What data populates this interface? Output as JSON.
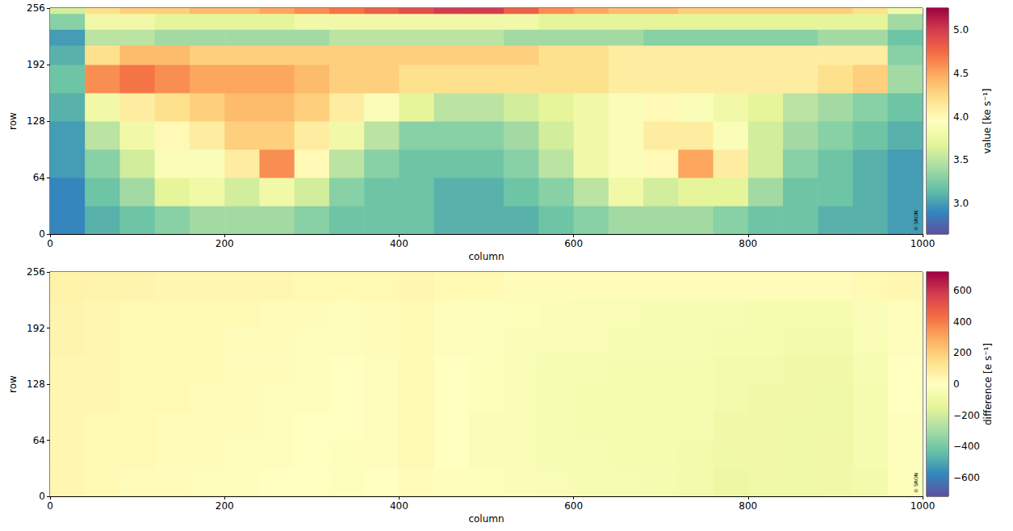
{
  "chart_data": [
    {
      "type": "heatmap",
      "x_label": "column",
      "y_label": "row",
      "xlim": [
        0,
        1000
      ],
      "xticks": [
        0,
        200,
        400,
        600,
        800,
        1000
      ],
      "ylim": [
        0,
        256
      ],
      "yticks": [
        0,
        64,
        128,
        192,
        256
      ],
      "x_edges": [
        0,
        40,
        80,
        120,
        160,
        200,
        240,
        280,
        320,
        360,
        400,
        440,
        480,
        520,
        560,
        600,
        640,
        680,
        720,
        760,
        800,
        840,
        880,
        920,
        960,
        1000
      ],
      "y_edges": [
        0,
        32,
        64,
        96,
        128,
        160,
        192,
        214,
        232,
        250,
        256
      ],
      "cells": [
        [
          2.9,
          3.1,
          3.2,
          3.3,
          3.4,
          3.4,
          3.4,
          3.3,
          3.2,
          3.2,
          3.2,
          3.1,
          3.1,
          3.1,
          3.2,
          3.3,
          3.4,
          3.4,
          3.4,
          3.3,
          3.2,
          3.2,
          3.1,
          3.1,
          3.0
        ],
        [
          2.9,
          3.2,
          3.4,
          3.7,
          3.8,
          3.6,
          3.8,
          3.6,
          3.3,
          3.2,
          3.2,
          3.1,
          3.1,
          3.2,
          3.3,
          3.5,
          3.8,
          3.6,
          3.7,
          3.7,
          3.4,
          3.2,
          3.2,
          3.1,
          3.0
        ],
        [
          3.0,
          3.3,
          3.6,
          3.9,
          3.9,
          4.1,
          4.6,
          4.0,
          3.5,
          3.3,
          3.2,
          3.2,
          3.2,
          3.3,
          3.5,
          3.8,
          3.9,
          4.0,
          4.5,
          4.1,
          3.6,
          3.3,
          3.2,
          3.1,
          3.0
        ],
        [
          3.0,
          3.5,
          3.8,
          4.0,
          4.1,
          4.3,
          4.3,
          4.1,
          3.8,
          3.5,
          3.3,
          3.3,
          3.3,
          3.4,
          3.6,
          3.8,
          3.9,
          4.1,
          4.1,
          3.9,
          3.6,
          3.4,
          3.3,
          3.2,
          3.1
        ],
        [
          3.1,
          3.8,
          4.1,
          4.2,
          4.3,
          4.4,
          4.4,
          4.3,
          4.1,
          3.9,
          3.7,
          3.5,
          3.5,
          3.6,
          3.7,
          3.8,
          3.9,
          4.0,
          3.9,
          3.8,
          3.7,
          3.5,
          3.4,
          3.3,
          3.2
        ],
        [
          3.2,
          4.6,
          4.7,
          4.6,
          4.5,
          4.5,
          4.5,
          4.4,
          4.3,
          4.3,
          4.2,
          4.2,
          4.2,
          4.2,
          4.2,
          4.2,
          4.1,
          4.1,
          4.1,
          4.1,
          4.1,
          4.1,
          4.2,
          4.3,
          3.4
        ],
        [
          3.1,
          4.2,
          4.4,
          4.4,
          4.3,
          4.3,
          4.3,
          4.3,
          4.3,
          4.3,
          4.3,
          4.3,
          4.3,
          4.3,
          4.2,
          4.2,
          4.1,
          4.1,
          4.1,
          4.1,
          4.1,
          4.1,
          4.1,
          4.1,
          3.3
        ],
        [
          3.0,
          3.5,
          3.5,
          3.4,
          3.4,
          3.4,
          3.4,
          3.4,
          3.5,
          3.5,
          3.5,
          3.5,
          3.5,
          3.4,
          3.4,
          3.4,
          3.4,
          3.3,
          3.3,
          3.3,
          3.3,
          3.3,
          3.4,
          3.4,
          3.2
        ],
        [
          3.3,
          3.8,
          3.8,
          3.7,
          3.7,
          3.7,
          3.7,
          3.8,
          3.8,
          3.8,
          3.8,
          3.8,
          3.8,
          3.8,
          3.7,
          3.7,
          3.7,
          3.7,
          3.7,
          3.7,
          3.7,
          3.7,
          3.7,
          3.7,
          3.4
        ],
        [
          3.6,
          4.2,
          4.3,
          4.3,
          4.4,
          4.4,
          4.5,
          4.6,
          4.7,
          4.8,
          4.9,
          5.0,
          5.0,
          4.8,
          4.6,
          4.5,
          4.4,
          4.4,
          4.3,
          4.3,
          4.3,
          4.3,
          4.3,
          4.2,
          3.8
        ]
      ],
      "colorbar": {
        "label": "value [ke s⁻¹]",
        "range": [
          2.65,
          5.25
        ],
        "ticks": [
          {
            "value": 3,
            "label": "3.0"
          },
          {
            "value": 3.5,
            "label": "3.5"
          },
          {
            "value": 4,
            "label": "4.0"
          },
          {
            "value": 4.5,
            "label": "4.5"
          },
          {
            "value": 5,
            "label": "5.0"
          }
        ]
      },
      "annotation": "© SRON"
    },
    {
      "type": "heatmap",
      "x_label": "column",
      "y_label": "row",
      "xlim": [
        0,
        1000
      ],
      "xticks": [
        0,
        200,
        400,
        600,
        800,
        1000
      ],
      "ylim": [
        0,
        256
      ],
      "yticks": [
        0,
        64,
        128,
        192,
        256
      ],
      "x_edges": [
        0,
        40,
        80,
        120,
        160,
        200,
        240,
        280,
        320,
        360,
        400,
        440,
        480,
        520,
        560,
        600,
        640,
        680,
        720,
        760,
        800,
        840,
        880,
        920,
        960,
        1000
      ],
      "y_edges": [
        0,
        32,
        64,
        96,
        128,
        160,
        192,
        224,
        256
      ],
      "cells": [
        [
          40,
          30,
          20,
          20,
          10,
          10,
          0,
          0,
          -10,
          0,
          20,
          10,
          -20,
          -30,
          -40,
          -50,
          -50,
          -60,
          -70,
          -100,
          -90,
          -90,
          -80,
          -70,
          -20
        ],
        [
          40,
          30,
          30,
          20,
          20,
          10,
          10,
          0,
          -10,
          10,
          30,
          0,
          -30,
          -40,
          -50,
          -50,
          -60,
          -60,
          -70,
          -90,
          -80,
          -90,
          -80,
          -60,
          -10
        ],
        [
          40,
          30,
          30,
          20,
          20,
          20,
          10,
          0,
          0,
          10,
          30,
          0,
          -30,
          -40,
          -50,
          -60,
          -60,
          -60,
          -60,
          -80,
          -80,
          -90,
          -90,
          -60,
          -10
        ],
        [
          40,
          40,
          30,
          30,
          20,
          20,
          10,
          10,
          0,
          10,
          30,
          0,
          -20,
          -40,
          -50,
          -60,
          -60,
          -60,
          -60,
          -70,
          -80,
          -80,
          -90,
          -60,
          0
        ],
        [
          40,
          40,
          30,
          30,
          30,
          20,
          20,
          10,
          0,
          10,
          30,
          0,
          -20,
          -40,
          -50,
          -50,
          -60,
          -60,
          -60,
          -70,
          -70,
          -80,
          -80,
          -50,
          0
        ],
        [
          50,
          40,
          30,
          30,
          30,
          20,
          20,
          10,
          10,
          20,
          30,
          10,
          -10,
          -30,
          -40,
          -40,
          -50,
          -50,
          -50,
          -60,
          -60,
          -70,
          -70,
          -40,
          10
        ],
        [
          50,
          40,
          30,
          30,
          30,
          30,
          20,
          20,
          10,
          20,
          30,
          10,
          -10,
          -20,
          -30,
          -40,
          -40,
          -50,
          -50,
          -50,
          -60,
          -60,
          -60,
          -30,
          10
        ],
        [
          60,
          50,
          50,
          40,
          40,
          40,
          40,
          30,
          30,
          30,
          40,
          30,
          30,
          20,
          20,
          20,
          20,
          20,
          20,
          20,
          20,
          20,
          20,
          30,
          40
        ]
      ],
      "colorbar": {
        "label": "difference [e s⁻¹]",
        "range": [
          -720,
          720
        ],
        "ticks": [
          {
            "value": -600,
            "label": "−600"
          },
          {
            "value": -400,
            "label": "−400"
          },
          {
            "value": -200,
            "label": "−200"
          },
          0,
          200,
          400,
          600
        ]
      },
      "annotation": "© SRON"
    }
  ]
}
